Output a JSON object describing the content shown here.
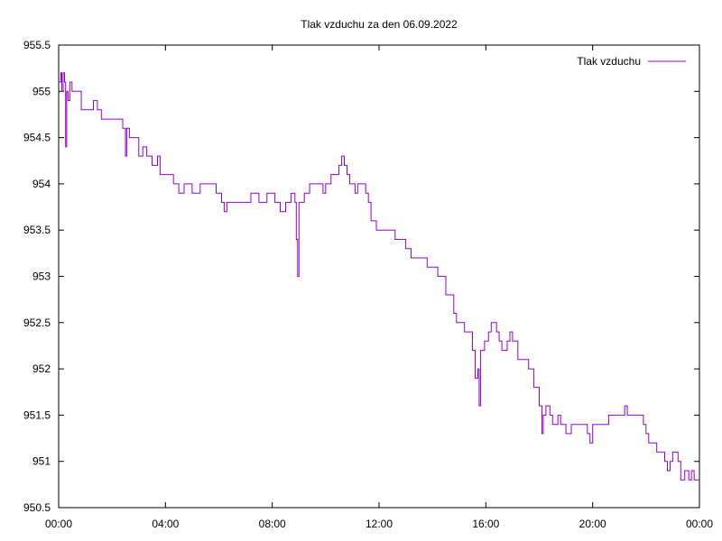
{
  "chart_data": {
    "type": "line",
    "title": "Tlak vzduchu za den 06.09.2022",
    "xlabel": "",
    "ylabel": "",
    "x_unit": "hours",
    "xlim": [
      0,
      24
    ],
    "ylim": [
      950.5,
      955.5
    ],
    "x_tick_values": [
      0,
      4,
      8,
      12,
      16,
      20,
      24
    ],
    "x_tick_labels": [
      "00:00",
      "04:00",
      "08:00",
      "12:00",
      "16:00",
      "20:00",
      "00:00"
    ],
    "y_tick_values": [
      950.5,
      951,
      951.5,
      952,
      952.5,
      953,
      953.5,
      954,
      954.5,
      955,
      955.5
    ],
    "y_tick_labels": [
      "950.5",
      "951",
      "951.5",
      "952",
      "952.5",
      "953",
      "953.5",
      "954",
      "954.5",
      "955",
      "955.5"
    ],
    "grid": false,
    "legend_position": "top-right",
    "series": [
      {
        "name": "Tlak vzduchu",
        "color": "#9400d3",
        "points": [
          [
            0.0,
            955.1
          ],
          [
            0.08,
            955.2
          ],
          [
            0.12,
            955.0
          ],
          [
            0.17,
            955.2
          ],
          [
            0.22,
            955.1
          ],
          [
            0.26,
            954.4
          ],
          [
            0.3,
            955.0
          ],
          [
            0.35,
            954.9
          ],
          [
            0.42,
            955.1
          ],
          [
            0.5,
            955.0
          ],
          [
            0.7,
            955.0
          ],
          [
            0.85,
            954.8
          ],
          [
            1.2,
            954.8
          ],
          [
            1.3,
            954.9
          ],
          [
            1.45,
            954.8
          ],
          [
            1.6,
            954.7
          ],
          [
            2.1,
            954.7
          ],
          [
            2.3,
            954.7
          ],
          [
            2.4,
            954.6
          ],
          [
            2.5,
            954.3
          ],
          [
            2.55,
            954.6
          ],
          [
            2.65,
            954.5
          ],
          [
            2.8,
            954.5
          ],
          [
            3.0,
            954.3
          ],
          [
            3.15,
            954.4
          ],
          [
            3.3,
            954.3
          ],
          [
            3.5,
            954.2
          ],
          [
            3.7,
            954.3
          ],
          [
            3.8,
            954.1
          ],
          [
            4.1,
            954.1
          ],
          [
            4.3,
            954.0
          ],
          [
            4.5,
            953.9
          ],
          [
            4.7,
            954.0
          ],
          [
            5.0,
            953.9
          ],
          [
            5.3,
            954.0
          ],
          [
            5.7,
            954.0
          ],
          [
            5.9,
            953.9
          ],
          [
            6.1,
            953.8
          ],
          [
            6.2,
            953.7
          ],
          [
            6.3,
            953.8
          ],
          [
            7.0,
            953.8
          ],
          [
            7.2,
            953.9
          ],
          [
            7.5,
            953.8
          ],
          [
            7.8,
            953.9
          ],
          [
            8.1,
            953.8
          ],
          [
            8.3,
            953.7
          ],
          [
            8.5,
            953.8
          ],
          [
            8.7,
            953.9
          ],
          [
            8.85,
            953.8
          ],
          [
            8.9,
            953.4
          ],
          [
            8.95,
            953.0
          ],
          [
            9.0,
            953.8
          ],
          [
            9.2,
            953.9
          ],
          [
            9.4,
            954.0
          ],
          [
            9.7,
            954.0
          ],
          [
            9.9,
            953.9
          ],
          [
            10.0,
            954.0
          ],
          [
            10.2,
            954.1
          ],
          [
            10.5,
            954.2
          ],
          [
            10.6,
            954.3
          ],
          [
            10.7,
            954.2
          ],
          [
            10.8,
            954.1
          ],
          [
            10.9,
            954.0
          ],
          [
            11.1,
            953.9
          ],
          [
            11.2,
            954.0
          ],
          [
            11.5,
            953.9
          ],
          [
            11.6,
            953.8
          ],
          [
            11.7,
            953.6
          ],
          [
            11.9,
            953.5
          ],
          [
            12.4,
            953.5
          ],
          [
            12.6,
            953.4
          ],
          [
            12.8,
            953.4
          ],
          [
            13.0,
            953.3
          ],
          [
            13.2,
            953.2
          ],
          [
            13.6,
            953.2
          ],
          [
            13.8,
            953.1
          ],
          [
            14.0,
            953.1
          ],
          [
            14.2,
            953.0
          ],
          [
            14.5,
            952.8
          ],
          [
            14.8,
            952.6
          ],
          [
            14.9,
            952.5
          ],
          [
            15.2,
            952.4
          ],
          [
            15.4,
            952.4
          ],
          [
            15.5,
            952.2
          ],
          [
            15.6,
            951.9
          ],
          [
            15.7,
            952.0
          ],
          [
            15.75,
            951.6
          ],
          [
            15.8,
            952.2
          ],
          [
            15.95,
            952.3
          ],
          [
            16.1,
            952.4
          ],
          [
            16.2,
            952.5
          ],
          [
            16.4,
            952.4
          ],
          [
            16.5,
            952.3
          ],
          [
            16.6,
            952.2
          ],
          [
            16.8,
            952.3
          ],
          [
            16.9,
            952.4
          ],
          [
            17.0,
            952.3
          ],
          [
            17.2,
            952.1
          ],
          [
            17.4,
            952.1
          ],
          [
            17.6,
            952.0
          ],
          [
            17.8,
            951.8
          ],
          [
            18.0,
            951.6
          ],
          [
            18.1,
            951.3
          ],
          [
            18.15,
            951.5
          ],
          [
            18.25,
            951.6
          ],
          [
            18.4,
            951.5
          ],
          [
            18.5,
            951.4
          ],
          [
            18.7,
            951.5
          ],
          [
            18.8,
            951.4
          ],
          [
            19.0,
            951.3
          ],
          [
            19.2,
            951.4
          ],
          [
            19.5,
            951.4
          ],
          [
            19.7,
            951.4
          ],
          [
            19.8,
            951.3
          ],
          [
            19.9,
            951.2
          ],
          [
            20.0,
            951.4
          ],
          [
            20.4,
            951.4
          ],
          [
            20.6,
            951.5
          ],
          [
            20.9,
            951.5
          ],
          [
            21.2,
            951.6
          ],
          [
            21.3,
            951.5
          ],
          [
            21.7,
            951.5
          ],
          [
            21.9,
            951.4
          ],
          [
            22.0,
            951.3
          ],
          [
            22.1,
            951.2
          ],
          [
            22.3,
            951.2
          ],
          [
            22.4,
            951.1
          ],
          [
            22.6,
            951.1
          ],
          [
            22.7,
            951.0
          ],
          [
            22.8,
            950.9
          ],
          [
            22.9,
            951.0
          ],
          [
            23.0,
            951.1
          ],
          [
            23.2,
            951.0
          ],
          [
            23.3,
            950.8
          ],
          [
            23.45,
            950.9
          ],
          [
            23.6,
            950.8
          ],
          [
            23.7,
            950.9
          ],
          [
            23.8,
            950.8
          ],
          [
            24.0,
            950.8
          ]
        ]
      }
    ]
  }
}
